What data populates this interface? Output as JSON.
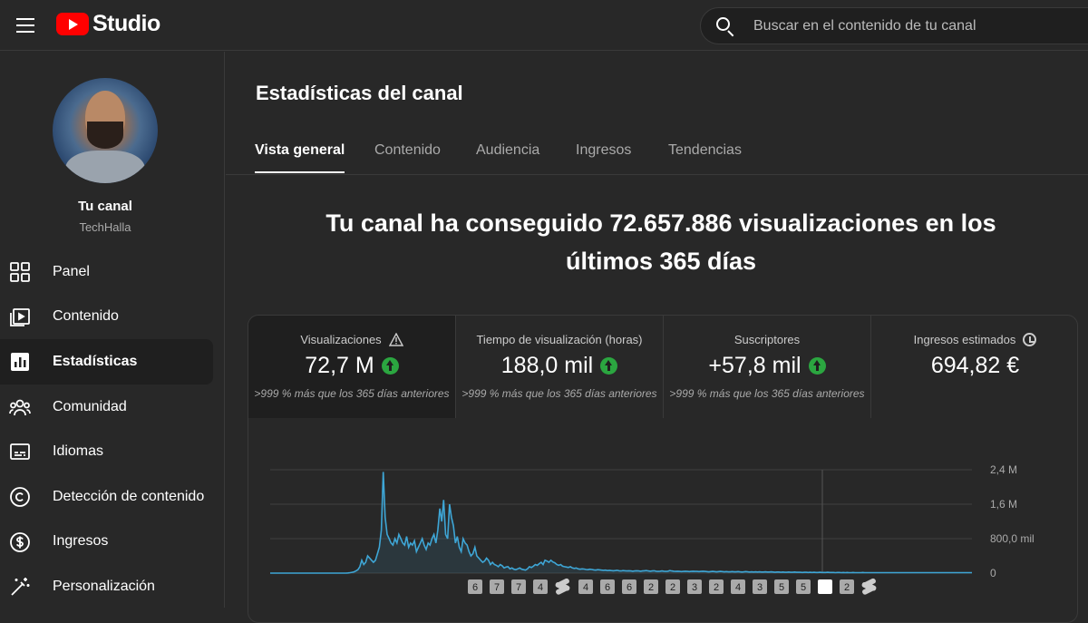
{
  "app": {
    "logo_text": "Studio"
  },
  "search": {
    "placeholder": "Buscar en el contenido de tu canal"
  },
  "channel": {
    "title": "Tu canal",
    "name": "TechHalla"
  },
  "sidebar": {
    "items": [
      {
        "label": "Panel",
        "icon": "dashboard-icon",
        "active": false
      },
      {
        "label": "Contenido",
        "icon": "content-icon",
        "active": false
      },
      {
        "label": "Estadísticas",
        "icon": "analytics-icon",
        "active": true
      },
      {
        "label": "Comunidad",
        "icon": "community-icon",
        "active": false
      },
      {
        "label": "Idiomas",
        "icon": "subtitles-icon",
        "active": false
      },
      {
        "label": "Detección de contenido",
        "icon": "copyright-icon",
        "active": false
      },
      {
        "label": "Ingresos",
        "icon": "earn-icon",
        "active": false
      },
      {
        "label": "Personalización",
        "icon": "customization-icon",
        "active": false
      }
    ]
  },
  "page": {
    "title": "Estadísticas del canal",
    "tabs": [
      "Vista general",
      "Contenido",
      "Audiencia",
      "Ingresos",
      "Tendencias"
    ],
    "headline_line1": "Tu canal ha conseguido 72.657.886 visualizaciones en los",
    "headline_line2": "últimos 365 días"
  },
  "metrics": [
    {
      "label": "Visualizaciones",
      "value": "72,7 M",
      "note": ">999 % más que los 365 días anteriores",
      "trend": "up",
      "label_icon": "warning-icon"
    },
    {
      "label": "Tiempo de visualización (horas)",
      "value": "188,0 mil",
      "note": ">999 % más que los 365 días anteriores",
      "trend": "up",
      "label_icon": ""
    },
    {
      "label": "Suscriptores",
      "value": "+57,8 mil",
      "note": ">999 % más que los 365 días anteriores",
      "trend": "up",
      "label_icon": ""
    },
    {
      "label": "Ingresos estimados",
      "value": "694,82 €",
      "note": "",
      "trend": "",
      "label_icon": "clock-icon"
    }
  ],
  "colors": {
    "line": "#3ea6d6",
    "accent_up": "#2ba640",
    "brand": "#ff0000"
  },
  "chart_data": {
    "type": "area",
    "ytick_labels": [
      "2,4 M",
      "1,6 M",
      "800,0 mil",
      "0"
    ],
    "yticks": [
      2400000,
      1600000,
      800000,
      0
    ],
    "ylim": [
      0,
      2400000
    ],
    "values": [
      0,
      0,
      0,
      0,
      0,
      0,
      0,
      0,
      0,
      0,
      0,
      0,
      0,
      0,
      0,
      0,
      0,
      0,
      0,
      0,
      0,
      0,
      0,
      0,
      0,
      0,
      0,
      0,
      0,
      0,
      0,
      0,
      0,
      0,
      0,
      0,
      0,
      0,
      0,
      0,
      5000,
      10000,
      20000,
      30000,
      50000,
      80000,
      150000,
      300000,
      200000,
      250000,
      400000,
      350000,
      300000,
      250000,
      300000,
      450000,
      600000,
      1000000,
      2350000,
      1300000,
      900000,
      800000,
      700000,
      650000,
      800000,
      700000,
      900000,
      800000,
      700000,
      650000,
      850000,
      600000,
      700000,
      650000,
      750000,
      500000,
      600000,
      700000,
      800000,
      650000,
      550000,
      700000,
      650000,
      800000,
      900000,
      700000,
      1000000,
      1500000,
      1200000,
      1700000,
      900000,
      800000,
      1600000,
      1300000,
      1100000,
      700000,
      850000,
      600000,
      500000,
      800000,
      700000,
      650000,
      500000,
      400000,
      450000,
      600000,
      400000,
      350000,
      300000,
      250000,
      280000,
      350000,
      300000,
      200000,
      250000,
      200000,
      180000,
      150000,
      200000,
      170000,
      120000,
      140000,
      150000,
      100000,
      120000,
      90000,
      80000,
      100000,
      120000,
      90000,
      80000,
      70000,
      100000,
      150000,
      130000,
      160000,
      200000,
      180000,
      220000,
      250000,
      200000,
      300000,
      280000,
      250000,
      300000,
      260000,
      240000,
      200000,
      180000,
      200000,
      160000,
      150000,
      140000,
      130000,
      150000,
      120000,
      110000,
      120000,
      100000,
      90000,
      100000,
      95000,
      85000,
      80000,
      90000,
      85000,
      75000,
      70000,
      80000,
      75000,
      70000,
      65000,
      70000,
      60000,
      65000,
      60000,
      55000,
      60000,
      65000,
      55000,
      50000,
      60000,
      55000,
      50000,
      55000,
      50000,
      45000,
      50000,
      55000,
      50000,
      45000,
      50000,
      55000,
      60000,
      50000,
      45000,
      50000,
      55000,
      45000,
      40000,
      45000,
      50000,
      45000,
      40000,
      45000,
      60000,
      50000,
      45000,
      40000,
      45000,
      40000,
      35000,
      40000,
      45000,
      40000,
      35000,
      40000,
      45000,
      40000,
      40000,
      35000,
      40000,
      45000,
      40000,
      35000,
      30000,
      35000,
      40000,
      35000,
      30000,
      35000,
      40000,
      35000,
      30000,
      35000,
      30000,
      30000,
      35000,
      30000,
      30000,
      35000,
      30000,
      25000,
      30000,
      35000,
      30000,
      25000,
      30000,
      25000,
      30000,
      25000,
      30000,
      25000,
      25000,
      30000,
      25000,
      25000,
      30000,
      25000,
      20000,
      25000,
      25000,
      20000,
      25000,
      20000,
      20000,
      25000,
      20000,
      20000,
      25000,
      20000,
      20000,
      20000,
      15000,
      20000,
      20000,
      15000,
      20000,
      15000,
      20000,
      15000,
      15000,
      20000,
      15000,
      15000,
      15000,
      20000,
      15000,
      15000,
      15000,
      10000,
      15000,
      15000,
      10000,
      15000,
      10000,
      15000,
      10000,
      10000,
      15000,
      10000,
      10000,
      10000,
      10000,
      15000,
      10000,
      10000,
      10000,
      10000,
      10000,
      10000,
      10000,
      10000,
      10000,
      10000,
      10000,
      10000,
      10000,
      10000,
      10000,
      10000,
      10000,
      10000,
      10000,
      10000,
      10000,
      10000,
      10000,
      10000,
      10000,
      10000,
      10000,
      10000,
      10000,
      10000,
      10000,
      10000,
      10000,
      10000,
      10000,
      10000,
      10000,
      10000,
      10000,
      10000,
      10000,
      10000,
      10000,
      10000,
      10000,
      10000,
      10000,
      10000,
      10000,
      10000,
      10000,
      10000,
      10000,
      10000,
      10000,
      10000
    ],
    "markers": [
      "6",
      "7",
      "7",
      "4",
      "shorts",
      "4",
      "6",
      "6",
      "2",
      "2",
      "3",
      "2",
      "4",
      "3",
      "5",
      "5",
      "",
      "2",
      "shorts"
    ],
    "grid": true
  }
}
